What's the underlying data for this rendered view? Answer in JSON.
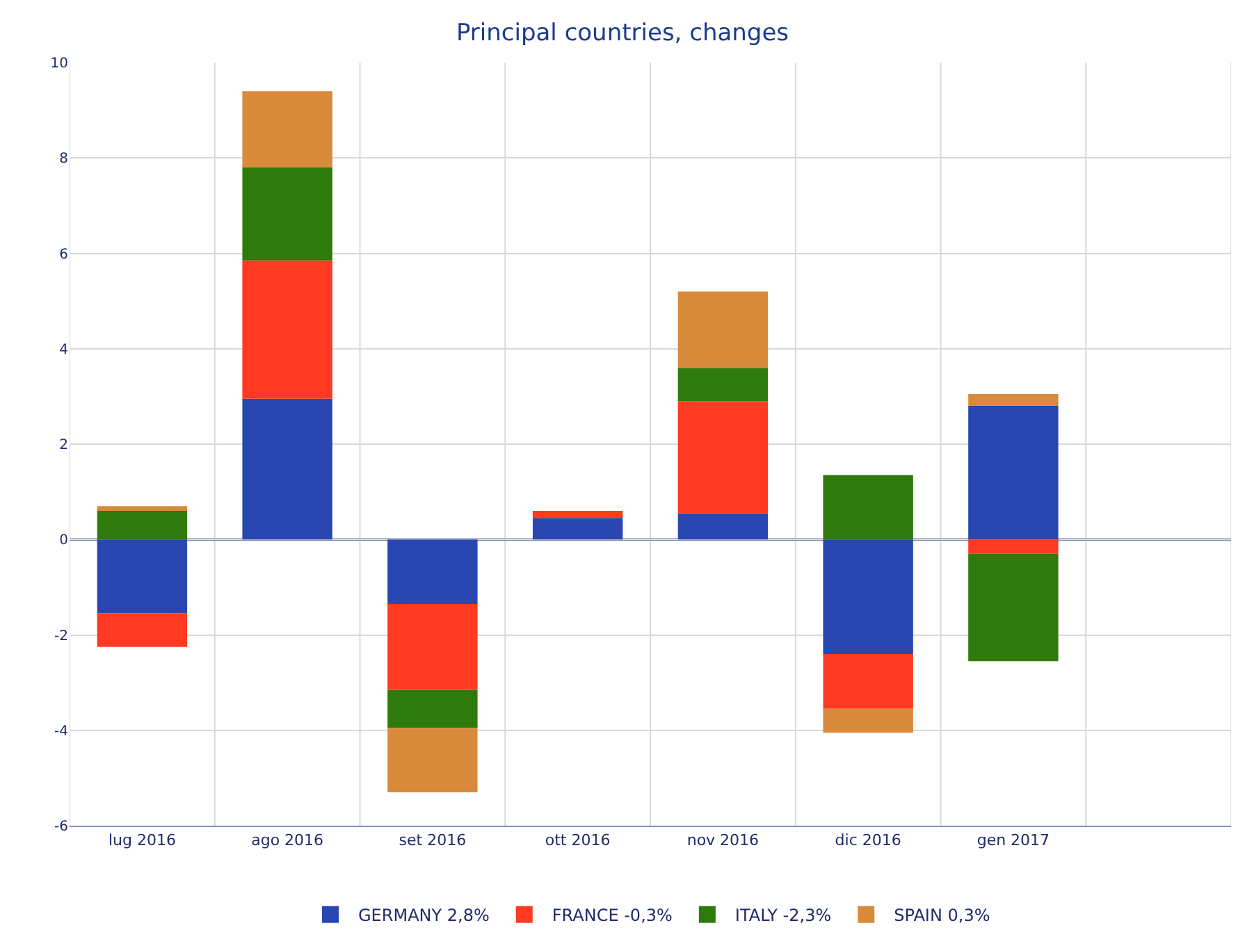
{
  "chart_data": {
    "type": "bar",
    "title": "Principal countries, changes",
    "stacked": true,
    "categories": [
      "lug 2016",
      "ago 2016",
      "set 2016",
      "ott 2016",
      "nov 2016",
      "dic 2016",
      "gen 2017",
      null
    ],
    "series": [
      {
        "name": "GERMANY 2,8%",
        "color": "#2a46b0",
        "values": [
          -1.55,
          2.95,
          -1.35,
          0.45,
          0.55,
          -2.4,
          2.8,
          null
        ]
      },
      {
        "name": "FRANCE -0,3%",
        "color": "#ff3a22",
        "values": [
          -0.7,
          2.9,
          -1.8,
          0.15,
          2.35,
          -1.15,
          -0.3,
          null
        ]
      },
      {
        "name": "ITALY -2,3%",
        "color": "#2f7a0c",
        "values": [
          0.6,
          1.95,
          -0.8,
          0,
          0.7,
          1.35,
          -2.25,
          null
        ]
      },
      {
        "name": "SPAIN 0,3%",
        "color": "#d98a3a",
        "values": [
          0.1,
          1.6,
          -1.35,
          0,
          1.6,
          -0.5,
          0.25,
          null
        ]
      }
    ],
    "ylim": [
      -6,
      10
    ],
    "yticks": [
      -6,
      -4,
      -2,
      0,
      2,
      4,
      6,
      8,
      10
    ],
    "grid": true,
    "legend": "bottom",
    "ref_lines": [
      {
        "axis": "y",
        "value": 0,
        "color": "#8890b8"
      }
    ]
  }
}
